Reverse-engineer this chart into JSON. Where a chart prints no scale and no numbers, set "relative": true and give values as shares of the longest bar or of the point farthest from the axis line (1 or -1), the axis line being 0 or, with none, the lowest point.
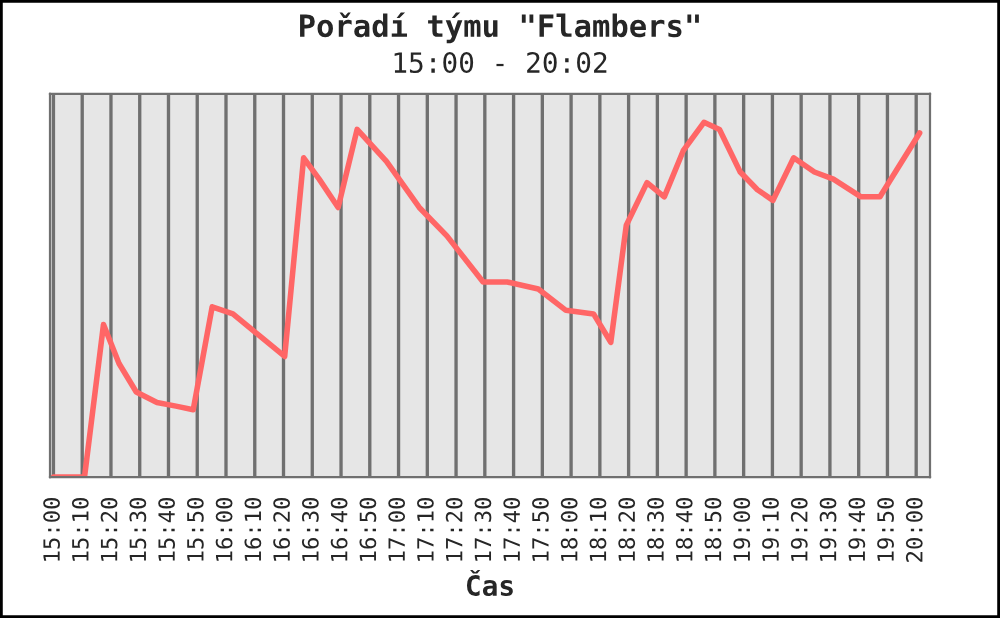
{
  "chart_data": {
    "type": "line",
    "title": "Pořadí týmu \"Flambers\"",
    "subtitle": "15:00 - 20:02",
    "xlabel": "Čas",
    "relative": true,
    "grid": "x",
    "tick_labels": "x",
    "marker": "none",
    "line_style": "solid",
    "xlim": [
      14.98,
      20.08
    ],
    "xticks": [
      {
        "value": 15,
        "label": "15:00"
      },
      {
        "value": 15.1667,
        "label": "15:10"
      },
      {
        "value": 15.3333,
        "label": "15:20"
      },
      {
        "value": 15.5,
        "label": "15:30"
      },
      {
        "value": 15.6667,
        "label": "15:40"
      },
      {
        "value": 15.8333,
        "label": "15:50"
      },
      {
        "value": 16,
        "label": "16:00"
      },
      {
        "value": 16.1667,
        "label": "16:10"
      },
      {
        "value": 16.3333,
        "label": "16:20"
      },
      {
        "value": 16.5,
        "label": "16:30"
      },
      {
        "value": 16.6667,
        "label": "16:40"
      },
      {
        "value": 16.8333,
        "label": "16:50"
      },
      {
        "value": 17,
        "label": "17:00"
      },
      {
        "value": 17.1667,
        "label": "17:10"
      },
      {
        "value": 17.3333,
        "label": "17:20"
      },
      {
        "value": 17.5,
        "label": "17:30"
      },
      {
        "value": 17.6667,
        "label": "17:40"
      },
      {
        "value": 17.8333,
        "label": "17:50"
      },
      {
        "value": 18,
        "label": "18:00"
      },
      {
        "value": 18.1667,
        "label": "18:10"
      },
      {
        "value": 18.3333,
        "label": "18:20"
      },
      {
        "value": 18.5,
        "label": "18:30"
      },
      {
        "value": 18.6667,
        "label": "18:40"
      },
      {
        "value": 18.8333,
        "label": "18:50"
      },
      {
        "value": 19,
        "label": "19:00"
      },
      {
        "value": 19.1667,
        "label": "19:10"
      },
      {
        "value": 19.3333,
        "label": "19:20"
      },
      {
        "value": 19.5,
        "label": "19:30"
      },
      {
        "value": 19.6667,
        "label": "19:40"
      },
      {
        "value": 19.8333,
        "label": "19:50"
      },
      {
        "value": 20,
        "label": "20:00"
      }
    ],
    "series": [
      {
        "color": "#ff6666",
        "x": [
          15.0,
          15.18,
          15.29,
          15.38,
          15.48,
          15.6,
          15.71,
          15.81,
          15.92,
          16.04,
          16.19,
          16.34,
          16.45,
          16.54,
          16.65,
          16.76,
          16.93,
          17.12,
          17.28,
          17.49,
          17.63,
          17.81,
          17.97,
          18.13,
          18.23,
          18.32,
          18.44,
          18.54,
          18.65,
          18.77,
          18.86,
          18.98,
          19.08,
          19.17,
          19.29,
          19.41,
          19.52,
          19.68,
          19.79,
          20.02
        ],
        "values": [
          0,
          0,
          0.43,
          0.32,
          0.24,
          0.21,
          0.2,
          0.19,
          0.48,
          0.46,
          0.4,
          0.34,
          0.9,
          0.84,
          0.76,
          0.98,
          0.89,
          0.76,
          0.68,
          0.55,
          0.55,
          0.53,
          0.47,
          0.46,
          0.38,
          0.71,
          0.83,
          0.79,
          0.92,
          1.0,
          0.98,
          0.86,
          0.81,
          0.78,
          0.9,
          0.86,
          0.84,
          0.79,
          0.79,
          0.97
        ]
      }
    ]
  }
}
